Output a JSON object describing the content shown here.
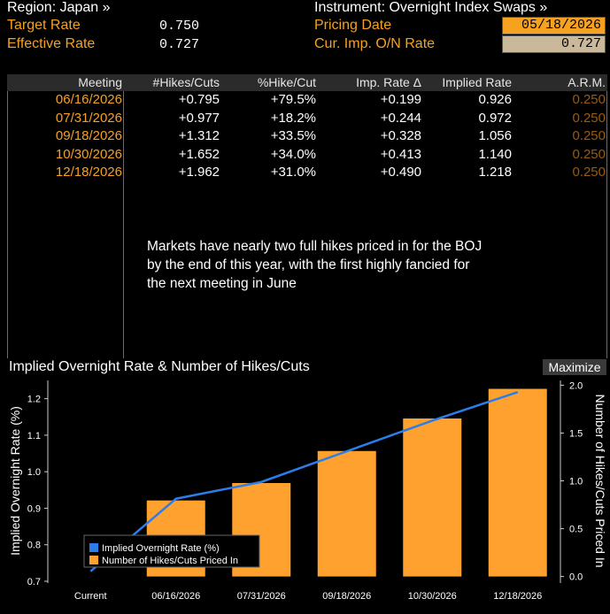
{
  "header": {
    "region_label": "Region: Japan »",
    "instrument_label": "Instrument: Overnight Index Swaps »",
    "target_rate_label": "Target Rate",
    "target_rate_value": "0.750",
    "effective_rate_label": "Effective Rate",
    "effective_rate_value": "0.727",
    "pricing_date_label": "Pricing Date",
    "pricing_date_value": "05/18/2026",
    "cur_imp_label": "Cur. Imp. O/N Rate",
    "cur_imp_value": "0.727"
  },
  "table": {
    "columns": [
      "Meeting",
      "#Hikes/Cuts",
      "%Hike/Cut",
      "Imp. Rate Δ",
      "Implied Rate",
      "A.R.M."
    ],
    "rows": [
      {
        "meeting": "06/16/2026",
        "hikes": "+0.795",
        "pct": "+79.5%",
        "delta": "+0.199",
        "implied": "0.926",
        "arm": "0.250"
      },
      {
        "meeting": "07/31/2026",
        "hikes": "+0.977",
        "pct": "+18.2%",
        "delta": "+0.244",
        "implied": "0.972",
        "arm": "0.250"
      },
      {
        "meeting": "09/18/2026",
        "hikes": "+1.312",
        "pct": "+33.5%",
        "delta": "+0.328",
        "implied": "1.056",
        "arm": "0.250"
      },
      {
        "meeting": "10/30/2026",
        "hikes": "+1.652",
        "pct": "+34.0%",
        "delta": "+0.413",
        "implied": "1.140",
        "arm": "0.250"
      },
      {
        "meeting": "12/18/2026",
        "hikes": "+1.962",
        "pct": "+31.0%",
        "delta": "+0.490",
        "implied": "1.218",
        "arm": "0.250"
      }
    ]
  },
  "annotation": "Markets have nearly two full hikes priced in for the BOJ by the end of this year, with the first highly fancied for the next meeting in June",
  "chart_panel": {
    "title": "Implied Overnight Rate & Number of Hikes/Cuts",
    "maximize_label": "Maximize"
  },
  "colors": {
    "orange": "#f7a121",
    "bar": "#ffa12e",
    "line": "#2b7de9",
    "header_bg": "#2b2b2b",
    "pricing_date_bg": "#f7a121",
    "cur_imp_bg": "#c9b99a"
  },
  "chart_data": {
    "type": "bar",
    "categories": [
      "Current",
      "06/16/2026",
      "07/31/2026",
      "09/18/2026",
      "10/30/2026",
      "12/18/2026"
    ],
    "series": [
      {
        "name": "Implied Overnight Rate (%)",
        "type": "line",
        "axis": "left",
        "values": [
          0.727,
          0.926,
          0.972,
          1.056,
          1.14,
          1.218
        ]
      },
      {
        "name": "Number of Hikes/Cuts Priced In",
        "type": "bar",
        "axis": "right",
        "values": [
          0,
          0.795,
          0.977,
          1.312,
          1.652,
          1.962
        ]
      }
    ],
    "ylabel": "Implied Overnight Rate (%)",
    "y2label": "Number of Hikes/Cuts Priced In",
    "ylim": [
      0.7,
      1.25
    ],
    "y2lim": [
      -0.05,
      2.05
    ],
    "yticks": [
      "0.7",
      "0.8",
      "0.9",
      "1.0",
      "1.1",
      "1.2"
    ],
    "y2ticks": [
      "0.0",
      "0.5",
      "1.0",
      "1.5",
      "2.0"
    ],
    "legend_position": "bottom-left",
    "grid": false
  }
}
